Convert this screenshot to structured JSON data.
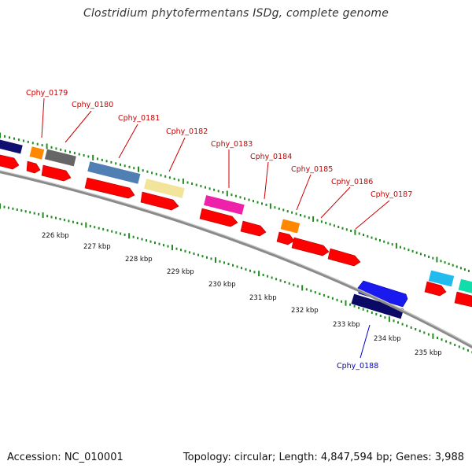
{
  "title": "Clostridium phytofermentans ISDg, complete genome",
  "footer": {
    "accession": "Accession: NC_010001",
    "summary": "Topology: circular; Length: 4,847,594 bp; Genes: 3,988"
  },
  "colors": {
    "red_gene": "#ff0000",
    "label_red": "#cc0000",
    "label_blue": "#0000cc",
    "backbone": "#8a8a8a",
    "tick_green": "#228b22"
  },
  "ruler": {
    "labels": [
      "226 kbp",
      "227 kbp",
      "228 kbp",
      "229 kbp",
      "230 kbp",
      "231 kbp",
      "232 kbp",
      "233 kbp",
      "234 kbp",
      "235 kbp"
    ]
  },
  "gene_labels": [
    {
      "text": "Cphy_0179",
      "color": "red"
    },
    {
      "text": "Cphy_0180",
      "color": "red"
    },
    {
      "text": "Cphy_0181",
      "color": "red"
    },
    {
      "text": "Cphy_0182",
      "color": "red"
    },
    {
      "text": "Cphy_0183",
      "color": "red"
    },
    {
      "text": "Cphy_0184",
      "color": "red"
    },
    {
      "text": "Cphy_0185",
      "color": "red"
    },
    {
      "text": "Cphy_0186",
      "color": "red"
    },
    {
      "text": "Cphy_0187",
      "color": "red"
    },
    {
      "text": "Cphy_0188",
      "color": "blue"
    }
  ]
}
